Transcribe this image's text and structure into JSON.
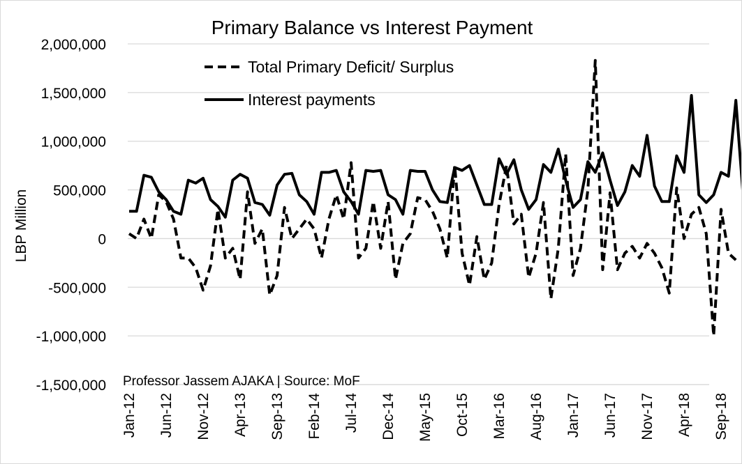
{
  "chart_data": {
    "type": "line",
    "title": "Primary Balance vs Interest Payment",
    "ylabel": "LBP Million",
    "xlabel": "",
    "ylim": [
      -1500000,
      2000000
    ],
    "yticks": [
      2000000,
      1500000,
      1000000,
      500000,
      0,
      -500000,
      -1000000,
      -1500000
    ],
    "ytick_labels": [
      "2,000,000",
      "1,500,000",
      "1,000,000",
      "500,000",
      "0",
      "-500,000",
      "-1,000,000",
      "-1,500,000"
    ],
    "xtick_labels": [
      "Jan-12",
      "Jun-12",
      "Nov-12",
      "Apr-13",
      "Sep-13",
      "Feb-14",
      "Jul-14",
      "Dec-14",
      "May-15",
      "Oct-15",
      "Mar-16",
      "Aug-16",
      "Jan-17",
      "Jun-17",
      "Nov-17",
      "Apr-18",
      "Sep-18"
    ],
    "grid": true,
    "legend_position": "top-left",
    "annotation": "Professor Jassem AJAKA | Source: MoF",
    "x_start": "Jan-12",
    "series": [
      {
        "name": "Total Primary Deficit/ Surplus",
        "style": "dashed",
        "color": "#000000",
        "values": [
          50000,
          0,
          200000,
          0,
          450000,
          380000,
          200000,
          -200000,
          -200000,
          -300000,
          -530000,
          -280000,
          300000,
          -200000,
          -100000,
          -420000,
          480000,
          -50000,
          100000,
          -580000,
          -380000,
          320000,
          0,
          100000,
          200000,
          100000,
          -200000,
          200000,
          450000,
          200000,
          780000,
          -200000,
          -100000,
          380000,
          -100000,
          380000,
          -420000,
          -50000,
          50000,
          420000,
          400000,
          280000,
          100000,
          -200000,
          750000,
          -150000,
          -480000,
          20000,
          -420000,
          -250000,
          350000,
          750000,
          150000,
          250000,
          -400000,
          -150000,
          370000,
          -620000,
          -100000,
          870000,
          -380000,
          -100000,
          500000,
          1830000,
          -320000,
          470000,
          -320000,
          -150000,
          -80000,
          -200000,
          -50000,
          -150000,
          -300000,
          -560000,
          520000,
          0,
          250000,
          320000,
          50000,
          -1000000,
          300000,
          -150000,
          -220000
        ]
      },
      {
        "name": "Interest payments",
        "style": "solid",
        "color": "#000000",
        "values": [
          280000,
          280000,
          650000,
          630000,
          480000,
          400000,
          280000,
          250000,
          600000,
          570000,
          620000,
          400000,
          330000,
          220000,
          600000,
          660000,
          620000,
          370000,
          350000,
          240000,
          550000,
          660000,
          670000,
          450000,
          380000,
          250000,
          680000,
          680000,
          700000,
          480000,
          380000,
          250000,
          700000,
          690000,
          700000,
          450000,
          400000,
          250000,
          700000,
          690000,
          690000,
          500000,
          380000,
          370000,
          730000,
          700000,
          750000,
          550000,
          350000,
          350000,
          820000,
          660000,
          810000,
          500000,
          300000,
          400000,
          760000,
          680000,
          920000,
          600000,
          320000,
          400000,
          790000,
          680000,
          880000,
          600000,
          340000,
          480000,
          750000,
          640000,
          1060000,
          540000,
          380000,
          380000,
          850000,
          680000,
          1470000,
          450000,
          370000,
          450000,
          680000,
          640000,
          1420000,
          420000
        ]
      }
    ]
  }
}
